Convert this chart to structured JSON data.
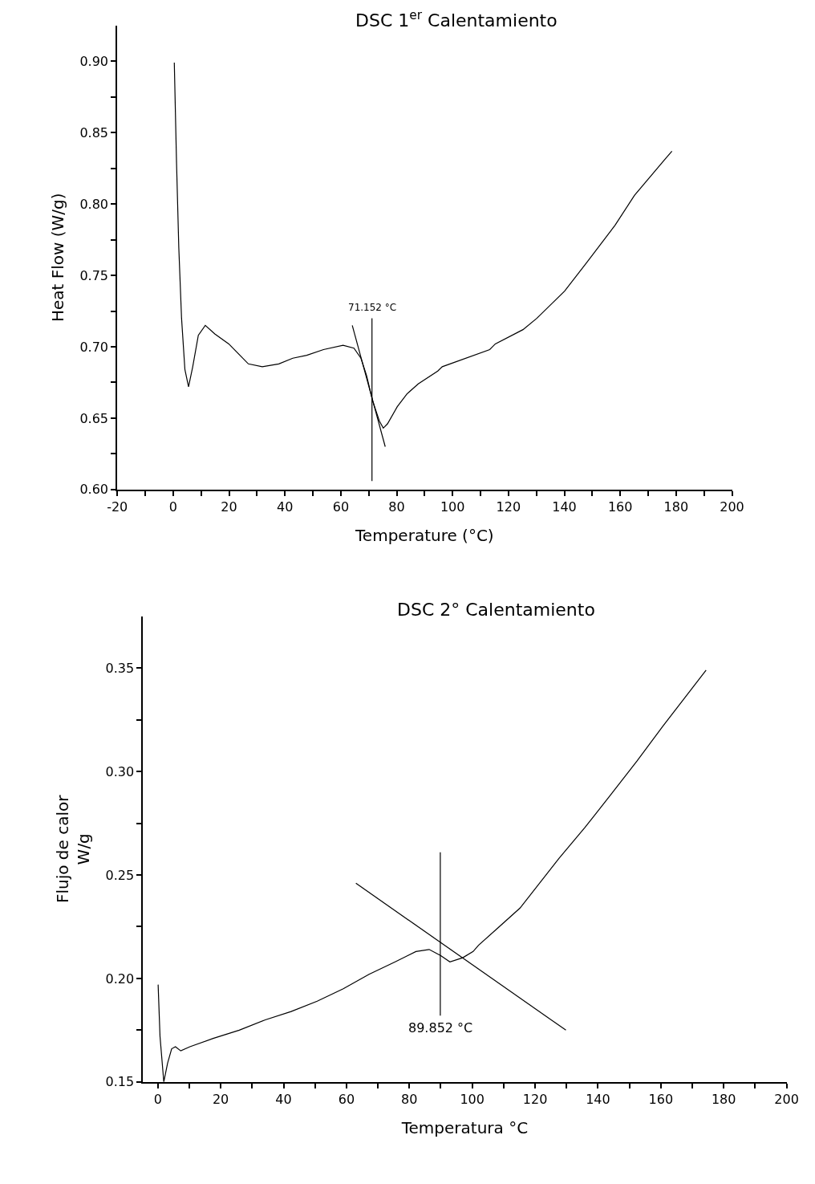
{
  "chart_data": [
    {
      "type": "line",
      "title": "DSC 1$^{er}$ Calentamiento",
      "xlabel": "Temperature (°C)",
      "ylabel": "Heat Flow (W/g)",
      "series": [
        {
          "color": "#000000",
          "x": [
            0.4,
            1.2,
            2.0,
            3.0,
            4.2,
            5.5,
            7.0,
            9.0,
            11.5,
            14.9,
            19.9,
            23.9,
            26.9,
            31.9,
            37.8,
            42.8,
            47.8,
            53.8,
            60.8,
            64.7,
            67.2,
            69.2,
            71.4,
            73.8,
            75.2,
            76.7,
            80.2,
            83.7,
            87.7,
            94.7,
            96.3,
            113.3,
            115.3,
            125.2,
            130.2,
            140.1,
            148.0,
            158.1,
            165.1,
            175.9,
            178.5
          ],
          "values": [
            0.899,
            0.829,
            0.77,
            0.72,
            0.684,
            0.672,
            0.686,
            0.708,
            0.715,
            0.709,
            0.702,
            0.694,
            0.688,
            0.686,
            0.688,
            0.692,
            0.694,
            0.698,
            0.701,
            0.699,
            0.692,
            0.68,
            0.662,
            0.648,
            0.643,
            0.646,
            0.658,
            0.667,
            0.674,
            0.683,
            0.686,
            0.698,
            0.702,
            0.712,
            0.72,
            0.739,
            0.759,
            0.785,
            0.806,
            0.831,
            0.837
          ]
        },
        {
          "color": "#000000",
          "x": [
            64.1,
            75.9
          ],
          "values": [
            0.715,
            0.63
          ]
        },
        {
          "color": "#000000",
          "x": [
            71.152,
            71.152
          ],
          "values": [
            0.606,
            0.72
          ]
        }
      ],
      "annotations": [
        {
          "text": "71.152 °C",
          "x": 71.152,
          "y": 0.72
        }
      ],
      "xlim": [
        -20,
        200
      ],
      "ylim": [
        0.6,
        0.925
      ],
      "xticks": [
        -20,
        {
          "value": -10,
          "label": null
        },
        0,
        {
          "value": 10,
          "label": null
        },
        20,
        {
          "value": 30,
          "label": null
        },
        40,
        {
          "value": 50,
          "label": null
        },
        60,
        {
          "value": 70,
          "label": null
        },
        80,
        {
          "value": 90,
          "label": null
        },
        100,
        {
          "value": 110,
          "label": null
        },
        120,
        {
          "value": 130,
          "label": null
        },
        140,
        {
          "value": 150,
          "label": null
        },
        160,
        {
          "value": 170,
          "label": null
        },
        180,
        {
          "value": 190,
          "label": null
        },
        200
      ],
      "yticks": [
        {
          "value": 0.6,
          "label": "0.60"
        },
        {
          "value": 0.625,
          "label": null
        },
        {
          "value": 0.65,
          "label": "0.65"
        },
        {
          "value": 0.675,
          "label": null
        },
        {
          "value": 0.7,
          "label": "0.70"
        },
        {
          "value": 0.725,
          "label": null
        },
        {
          "value": 0.75,
          "label": "0.75"
        },
        {
          "value": 0.775,
          "label": null
        },
        {
          "value": 0.8,
          "label": "0.80"
        },
        {
          "value": 0.825,
          "label": null
        },
        {
          "value": 0.85,
          "label": "0.85"
        },
        {
          "value": 0.875,
          "label": null
        },
        {
          "value": 0.9,
          "label": "0.90"
        }
      ],
      "marker": "none",
      "line_style": "solid"
    },
    {
      "type": "line",
      "title": "DSC 2° Calentamiento",
      "xlabel": "Temperatura °C",
      "ylabel": "Flujo de calor\nW/g",
      "series": [
        {
          "color": "#000000",
          "x": [
            0.1,
            0.7,
            1.9,
            3.1,
            4.4,
            5.6,
            7.3,
            10.2,
            17.6,
            25.9,
            34.2,
            42.4,
            50.7,
            59.0,
            67.2,
            75.5,
            82.1,
            86.3,
            90.0,
            92.9,
            97.0,
            100.3,
            102.0,
            108.6,
            115.2,
            127.6,
            135.9,
            144.2,
            152.4,
            160.7,
            167.3,
            173.9,
            174.4
          ],
          "values": [
            0.197,
            0.172,
            0.15,
            0.159,
            0.166,
            0.167,
            0.165,
            0.167,
            0.171,
            0.175,
            0.18,
            0.184,
            0.189,
            0.195,
            0.202,
            0.208,
            0.213,
            0.214,
            0.211,
            0.208,
            0.21,
            0.213,
            0.216,
            0.225,
            0.234,
            0.258,
            0.273,
            0.289,
            0.305,
            0.322,
            0.335,
            0.348,
            0.349
          ]
        },
        {
          "color": "#000000",
          "x": [
            63.0,
            129.8
          ],
          "values": [
            0.246,
            0.175
          ]
        },
        {
          "color": "#000000",
          "x": [
            89.852,
            89.852
          ],
          "values": [
            0.182,
            0.261
          ]
        }
      ],
      "annotations": [
        {
          "text": "89.852 °C",
          "x": 89.852,
          "y": 0.182
        }
      ],
      "xlim": [
        -4.7,
        200
      ],
      "ylim": [
        0.15,
        0.375
      ],
      "xticks": [
        0,
        {
          "value": 10,
          "label": null
        },
        20,
        {
          "value": 30,
          "label": null
        },
        40,
        {
          "value": 50,
          "label": null
        },
        60,
        {
          "value": 70,
          "label": null
        },
        80,
        {
          "value": 90,
          "label": null
        },
        100,
        {
          "value": 110,
          "label": null
        },
        120,
        {
          "value": 130,
          "label": null
        },
        140,
        {
          "value": 150,
          "label": null
        },
        160,
        {
          "value": 170,
          "label": null
        },
        180,
        {
          "value": 190,
          "label": null
        },
        200
      ],
      "yticks": [
        0.15,
        {
          "value": 0.175,
          "label": null
        },
        {
          "value": 0.2,
          "label": "0.20"
        },
        {
          "value": 0.225,
          "label": null
        },
        0.25,
        {
          "value": 0.275,
          "label": null
        },
        {
          "value": 0.3,
          "label": "0.30"
        },
        {
          "value": 0.325,
          "label": null
        },
        0.35
      ],
      "marker": "none",
      "line_style": "solid"
    }
  ]
}
